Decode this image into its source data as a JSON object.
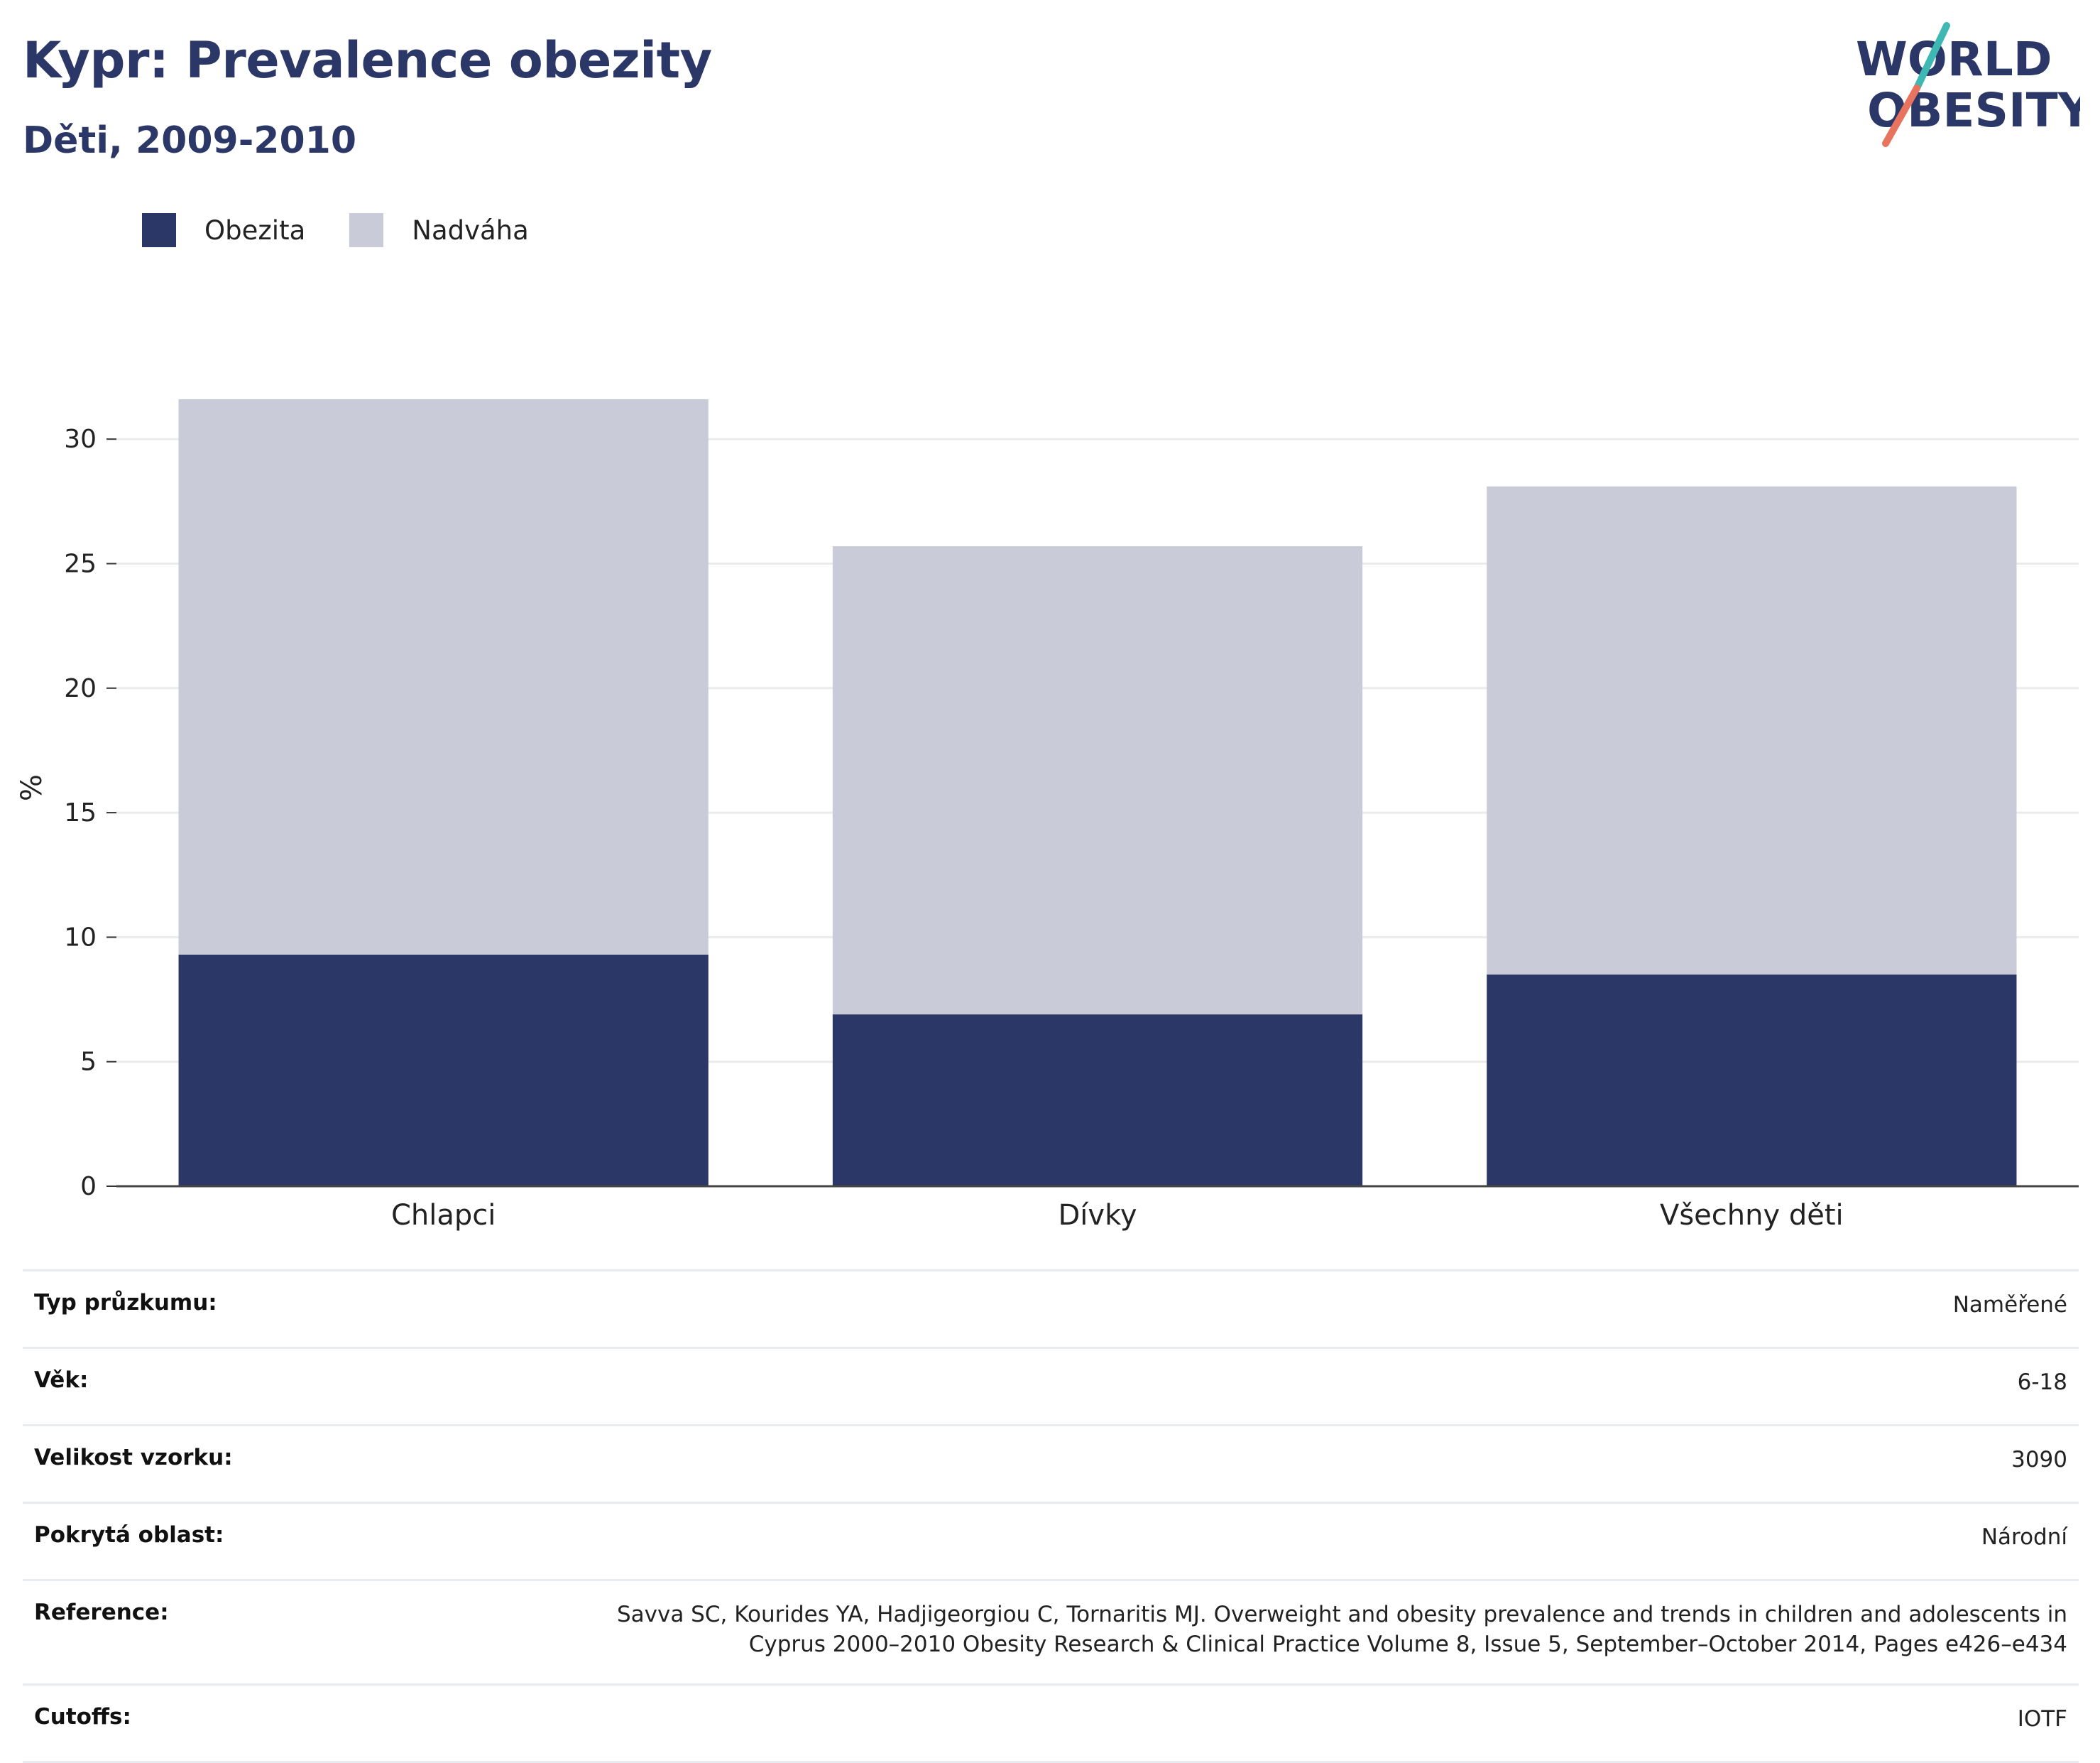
{
  "header": {
    "title": "Kypr: Prevalence obezity",
    "subtitle": "Děti, 2009-2010",
    "logo_line1": "WORLD",
    "logo_line2": "OBESITY"
  },
  "colors": {
    "obezita": "#2b3766",
    "nadvaha": "#c9ccd8",
    "title": "#2b3766",
    "logo_teal": "#3fb8b4",
    "logo_coral": "#e8735f"
  },
  "legend": [
    {
      "label": "Obezita",
      "color": "#2b3766"
    },
    {
      "label": "Nadváha",
      "color": "#c9ccd8"
    }
  ],
  "chart_data": {
    "type": "bar",
    "stacked": true,
    "categories": [
      "Chlapci",
      "Dívky",
      "Všechny děti"
    ],
    "series": [
      {
        "name": "Obezita",
        "values": [
          9.3,
          6.9,
          8.5
        ],
        "color": "#2b3766"
      },
      {
        "name": "Nadváha",
        "values": [
          22.3,
          18.8,
          19.6
        ],
        "color": "#c9ccd8"
      }
    ],
    "totals": [
      31.6,
      25.7,
      28.1
    ],
    "xlabel": "",
    "ylabel": "%",
    "ylim": [
      0,
      32
    ],
    "yticks": [
      0,
      5,
      10,
      15,
      20,
      25,
      30
    ],
    "grid": true,
    "legend_position": "top-left"
  },
  "info": [
    {
      "key": "Typ průzkumu:",
      "value": "Naměřené"
    },
    {
      "key": "Věk:",
      "value": "6-18"
    },
    {
      "key": "Velikost vzorku:",
      "value": "3090"
    },
    {
      "key": "Pokrytá oblast:",
      "value": "Národní"
    },
    {
      "key": "Reference:",
      "value": "Savva SC, Kourides YA, Hadjigeorgiou C, Tornaritis MJ. Overweight and obesity prevalence and trends in children and adolescents in Cyprus 2000–2010 Obesity Research & Clinical Practice Volume 8, Issue 5, September–October 2014, Pages e426–e434"
    },
    {
      "key": "Cutoffs:",
      "value": "IOTF"
    }
  ]
}
